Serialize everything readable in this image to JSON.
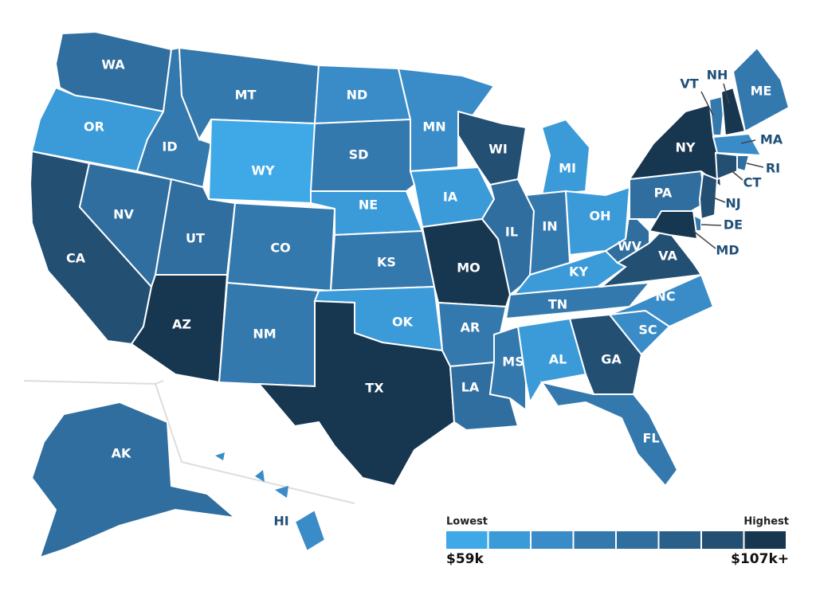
{
  "map": {
    "states": [
      {
        "label": "WA",
        "color": "#2f6e9f"
      },
      {
        "label": "OR",
        "color": "#3b9bd9"
      },
      {
        "label": "CA",
        "color": "#234f73"
      },
      {
        "label": "NV",
        "color": "#2f6e9f"
      },
      {
        "label": "ID",
        "color": "#3479ad"
      },
      {
        "label": "MT",
        "color": "#3479ad"
      },
      {
        "label": "WY",
        "color": "#3fa9e8"
      },
      {
        "label": "UT",
        "color": "#2f6e9f"
      },
      {
        "label": "CO",
        "color": "#3479ad"
      },
      {
        "label": "AZ",
        "color": "#173650"
      },
      {
        "label": "NM",
        "color": "#3479ad"
      },
      {
        "label": "ND",
        "color": "#3a8cc8"
      },
      {
        "label": "SD",
        "color": "#3479ad"
      },
      {
        "label": "NE",
        "color": "#3b9bd9"
      },
      {
        "label": "KS",
        "color": "#3479ad"
      },
      {
        "label": "OK",
        "color": "#3b9bd9"
      },
      {
        "label": "TX",
        "color": "#173650"
      },
      {
        "label": "MN",
        "color": "#3a8cc8"
      },
      {
        "label": "IA",
        "color": "#3b9bd9"
      },
      {
        "label": "MO",
        "color": "#173650"
      },
      {
        "label": "AR",
        "color": "#3479ad"
      },
      {
        "label": "LA",
        "color": "#2f6e9f"
      },
      {
        "label": "WI",
        "color": "#234f73"
      },
      {
        "label": "IL",
        "color": "#2f6e9f"
      },
      {
        "label": "MI",
        "color": "#3b9bd9"
      },
      {
        "label": "IN",
        "color": "#3479ad"
      },
      {
        "label": "OH",
        "color": "#3b9bd9"
      },
      {
        "label": "KY",
        "color": "#3b9bd9"
      },
      {
        "label": "TN",
        "color": "#3479ad"
      },
      {
        "label": "MS",
        "color": "#3479ad"
      },
      {
        "label": "AL",
        "color": "#3b9bd9"
      },
      {
        "label": "GA",
        "color": "#234f73"
      },
      {
        "label": "FL",
        "color": "#3479ad"
      },
      {
        "label": "SC",
        "color": "#3a8cc8"
      },
      {
        "label": "NC",
        "color": "#3a8cc8"
      },
      {
        "label": "VA",
        "color": "#234f73"
      },
      {
        "label": "WV",
        "color": "#2f6e9f"
      },
      {
        "label": "PA",
        "color": "#2f6e9f"
      },
      {
        "label": "NY",
        "color": "#173650"
      },
      {
        "label": "VT",
        "color": "#3479ad"
      },
      {
        "label": "NH",
        "color": "#173650"
      },
      {
        "label": "ME",
        "color": "#3479ad"
      },
      {
        "label": "MA",
        "color": "#3a8cc8"
      },
      {
        "label": "RI",
        "color": "#2f6e9f"
      },
      {
        "label": "CT",
        "color": "#234f73"
      },
      {
        "label": "NJ",
        "color": "#234f73"
      },
      {
        "label": "DE",
        "color": "#3479ad"
      },
      {
        "label": "MD",
        "color": "#173650"
      },
      {
        "label": "AK",
        "color": "#2f6e9f"
      },
      {
        "label": "HI",
        "color": "#3a8cc8"
      }
    ],
    "legend": {
      "low_label": "Lowest",
      "high_label": "Highest",
      "min_label": "$59k",
      "max_label": "$107k+",
      "colors": [
        "#3fa9e8",
        "#3b9bd9",
        "#3a8cc8",
        "#3479ad",
        "#2f6e9f",
        "#2a5f8a",
        "#234f73",
        "#173650"
      ]
    }
  }
}
